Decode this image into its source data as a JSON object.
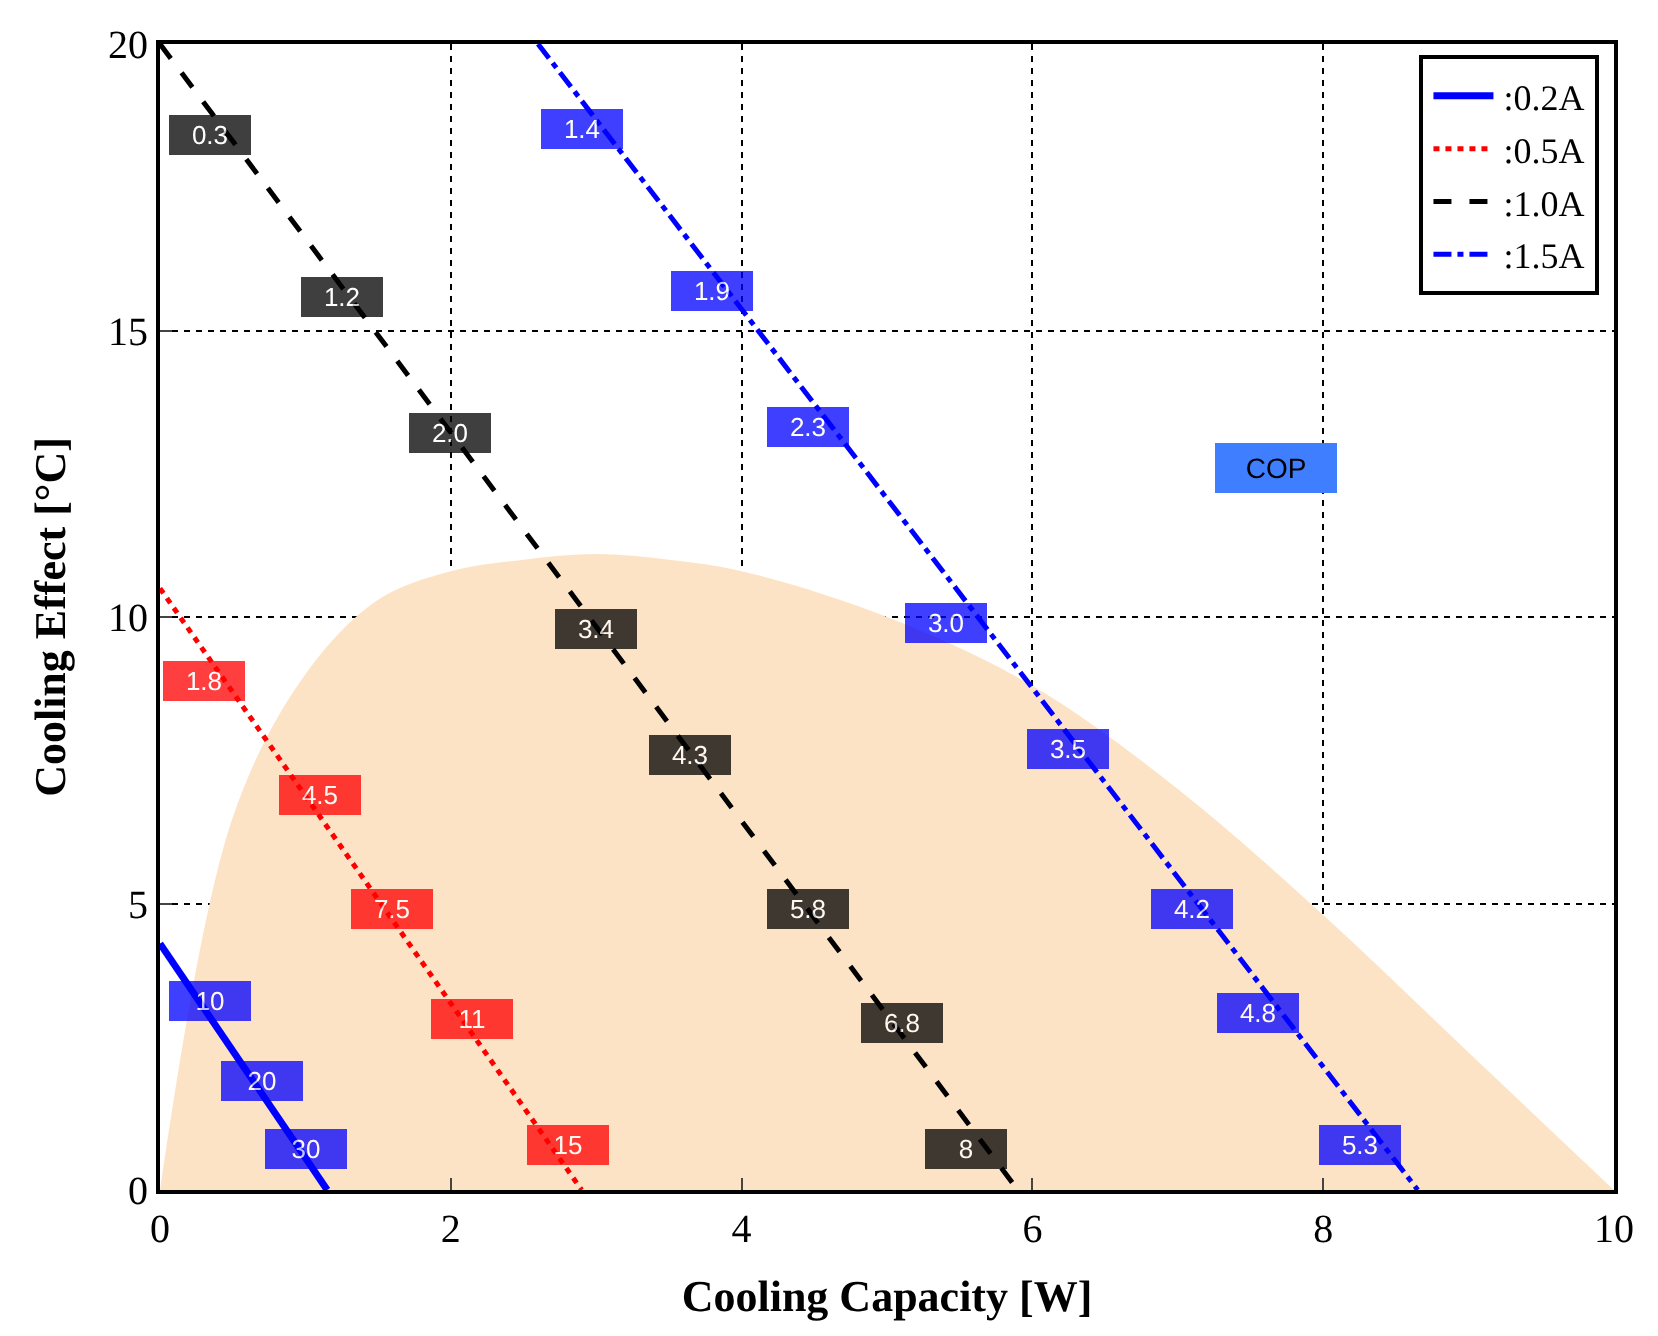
{
  "chart_data": {
    "type": "line",
    "xlabel": "Cooling Capacity [W]",
    "ylabel": "Cooling Effect [°C]",
    "xlim": [
      0,
      10
    ],
    "ylim": [
      0,
      20
    ],
    "xticks": [
      0,
      2,
      4,
      6,
      8,
      10
    ],
    "yticks": [
      0,
      5,
      10,
      15,
      20
    ],
    "grid": true,
    "legend": "top right",
    "marker": "none",
    "annotations": [
      "COP",
      {
        "text": "10",
        "x": 0.35,
        "y": 3.3
      },
      {
        "text": "20",
        "x": 0.7,
        "y": 1.9
      },
      {
        "text": "30",
        "x": 1.0,
        "y": 0.7
      },
      {
        "text": "1.8",
        "x": 0.3,
        "y": 8.9
      },
      {
        "text": "4.5",
        "x": 1.1,
        "y": 6.9
      },
      {
        "text": "7.5",
        "x": 1.6,
        "y": 4.9
      },
      {
        "text": "11",
        "x": 2.15,
        "y": 3.0
      },
      {
        "text": "15",
        "x": 2.8,
        "y": 0.8
      },
      {
        "text": "0.3",
        "x": 0.35,
        "y": 18.4
      },
      {
        "text": "1.2",
        "x": 1.25,
        "y": 15.6
      },
      {
        "text": "2.0",
        "x": 2.0,
        "y": 13.2
      },
      {
        "text": "3.4",
        "x": 3.0,
        "y": 9.8
      },
      {
        "text": "4.3",
        "x": 3.65,
        "y": 7.6
      },
      {
        "text": "5.8",
        "x": 4.45,
        "y": 4.9
      },
      {
        "text": "6.8",
        "x": 5.1,
        "y": 2.9
      },
      {
        "text": "8",
        "x": 5.55,
        "y": 0.7
      },
      {
        "text": "1.4",
        "x": 2.9,
        "y": 18.5
      },
      {
        "text": "1.9",
        "x": 3.8,
        "y": 15.7
      },
      {
        "text": "2.3",
        "x": 4.45,
        "y": 13.3
      },
      {
        "text": "3.0",
        "x": 5.4,
        "y": 9.9
      },
      {
        "text": "3.5",
        "x": 6.25,
        "y": 7.7
      },
      {
        "text": "4.2",
        "x": 7.1,
        "y": 4.9
      },
      {
        "text": "4.8",
        "x": 7.55,
        "y": 3.1
      },
      {
        "text": "5.3",
        "x": 8.25,
        "y": 0.8
      }
    ],
    "series": [
      {
        "type": "area",
        "color": "#fde3c6",
        "x": [
          0,
          0.5,
          1,
          1.5,
          2,
          2.5,
          3,
          3.5,
          4,
          5,
          6,
          7,
          8,
          9,
          10
        ],
        "values": [
          0,
          6.5,
          9,
          10.3,
          10.8,
          11,
          11.1,
          11,
          10.8,
          10,
          8.8,
          7,
          4.8,
          2.4,
          0
        ]
      },
      {
        "name": ":0.2A",
        "color": "#0000ff",
        "line_style": "solid",
        "x": [
          0,
          1.15
        ],
        "values": [
          4.3,
          0
        ]
      },
      {
        "name": ":0.5A",
        "color": "#ff0000",
        "line_style": "dotted",
        "x": [
          0,
          2.9
        ],
        "values": [
          10.5,
          0
        ]
      },
      {
        "name": ":1.0A",
        "color": "#000000",
        "line_style": "dashed",
        "x": [
          0,
          5.9
        ],
        "values": [
          20,
          0
        ]
      },
      {
        "name": ":1.5A",
        "color": "#0000ff",
        "line_style": "dashdot",
        "x": [
          2.6,
          8.65
        ],
        "values": [
          20,
          0
        ]
      }
    ]
  }
}
